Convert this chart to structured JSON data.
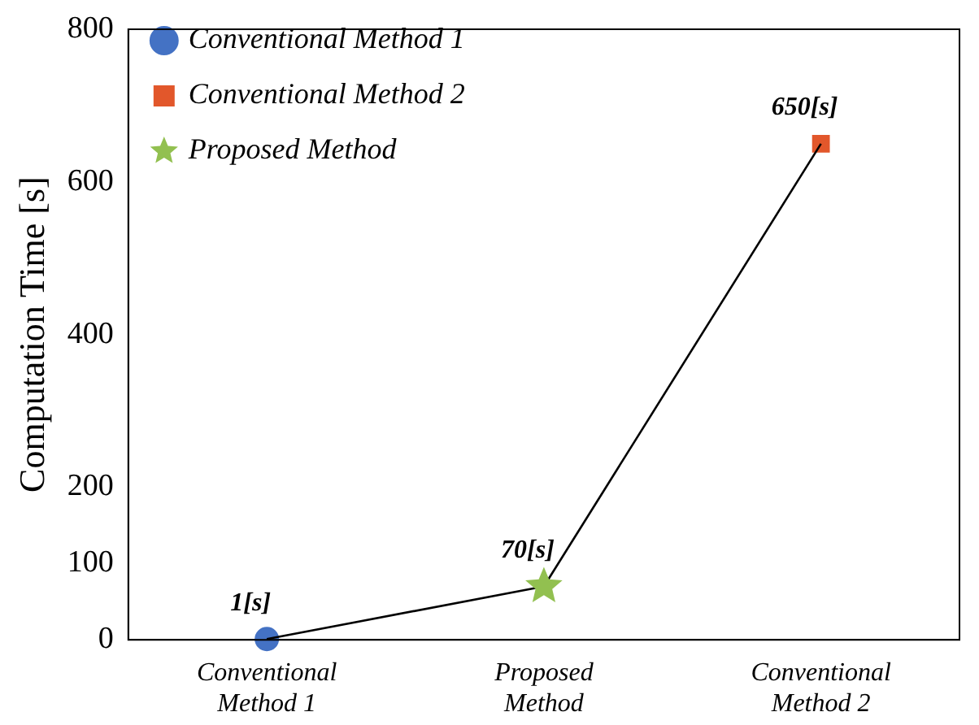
{
  "chart_data": {
    "type": "line",
    "ylabel": "Computation Time [s]",
    "categories": [
      "Conventional Method 1",
      "Proposed Method",
      "Conventional Method 2"
    ],
    "ylim": [
      0,
      800
    ],
    "yticks": [
      0,
      100,
      200,
      400,
      600,
      800
    ],
    "series": [
      {
        "type": "line",
        "color": "#000000",
        "values": [
          1,
          70,
          650
        ],
        "marker": "none",
        "value_labels": [
          "1[s]",
          "70[s]",
          "650[s]"
        ]
      },
      {
        "type": "scatter",
        "name": "Conventional Method 1",
        "color": "#4472c4",
        "x": [
          "Conventional Method 1"
        ],
        "values": [
          1
        ],
        "marker": "circle"
      },
      {
        "type": "scatter",
        "name": "Conventional Method 2",
        "color": "#e2572b",
        "x": [
          "Conventional Method 2"
        ],
        "values": [
          650
        ],
        "marker": "square"
      },
      {
        "type": "scatter",
        "name": "Proposed Method",
        "color": "#92c050",
        "x": [
          "Proposed Method"
        ],
        "values": [
          70
        ],
        "marker": "star"
      }
    ],
    "legend": "top left",
    "grid": false
  }
}
